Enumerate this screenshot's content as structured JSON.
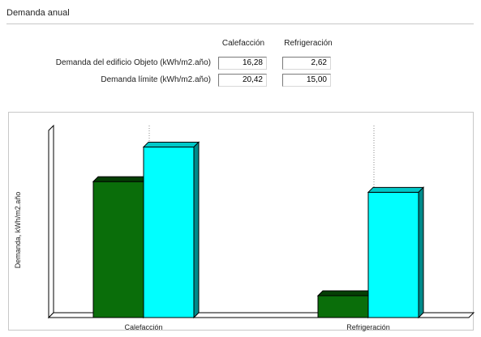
{
  "group": {
    "title": "Demanda anual"
  },
  "table": {
    "columns": [
      "Calefacción",
      "Refrigeración"
    ],
    "rows": [
      {
        "label": "Demanda del edificio Objeto (kWh/m2.año)",
        "values": [
          "16,28",
          "2,62"
        ]
      },
      {
        "label": "Demanda límite (kWh/m2.año)",
        "values": [
          "20,42",
          "15,00"
        ]
      }
    ]
  },
  "colors": {
    "objeto": "#0a6e0a",
    "limite": "#00ffff"
  },
  "chart_data": {
    "type": "bar",
    "categories": [
      "Calefacción",
      "Refrigeración"
    ],
    "series": [
      {
        "values": [
          16.28,
          2.62
        ]
      },
      {
        "values": [
          20.42,
          15.0
        ]
      }
    ],
    "title": "",
    "xlabel": "",
    "ylabel": "Demanda, kWh/m2.año",
    "ylim": [
      0,
      22.5
    ],
    "grid": false,
    "legend": "none"
  }
}
